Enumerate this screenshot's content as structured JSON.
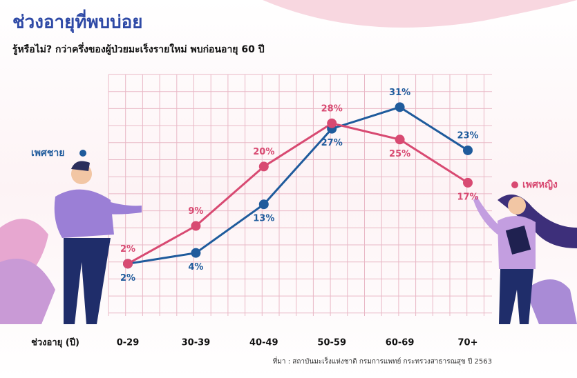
{
  "chart_data": {
    "type": "line",
    "title": "ช่วงอายุที่พบบ่อย",
    "subtitle": "รู้หรือไม่? กว่าครึ่งของผู้ป่วยมะเร็งรายใหม่ พบก่อนอายุ 60 ปี",
    "x_label": "ช่วงอายุ (ปี)",
    "source": "ที่มา : สถาบันมะเร็งแห่งชาติ กรมการแพทย์ กระทรวงสาธารณสุข ปี 2563",
    "categories": [
      "0-29",
      "30-39",
      "40-49",
      "50-59",
      "60-69",
      "70+"
    ],
    "ylim": [
      0,
      35
    ],
    "series": [
      {
        "name": "เพศชาย",
        "color": "#1f5b9c",
        "values": [
          2,
          4,
          13,
          27,
          31,
          23
        ],
        "value_labels": [
          "2%",
          "4%",
          "13%",
          "27%",
          "31%",
          "23%"
        ]
      },
      {
        "name": "เพศหญิง",
        "color": "#d84a72",
        "values": [
          2,
          9,
          20,
          28,
          25,
          17
        ],
        "value_labels": [
          "2%",
          "9%",
          "20%",
          "28%",
          "25%",
          "17%"
        ]
      }
    ]
  }
}
